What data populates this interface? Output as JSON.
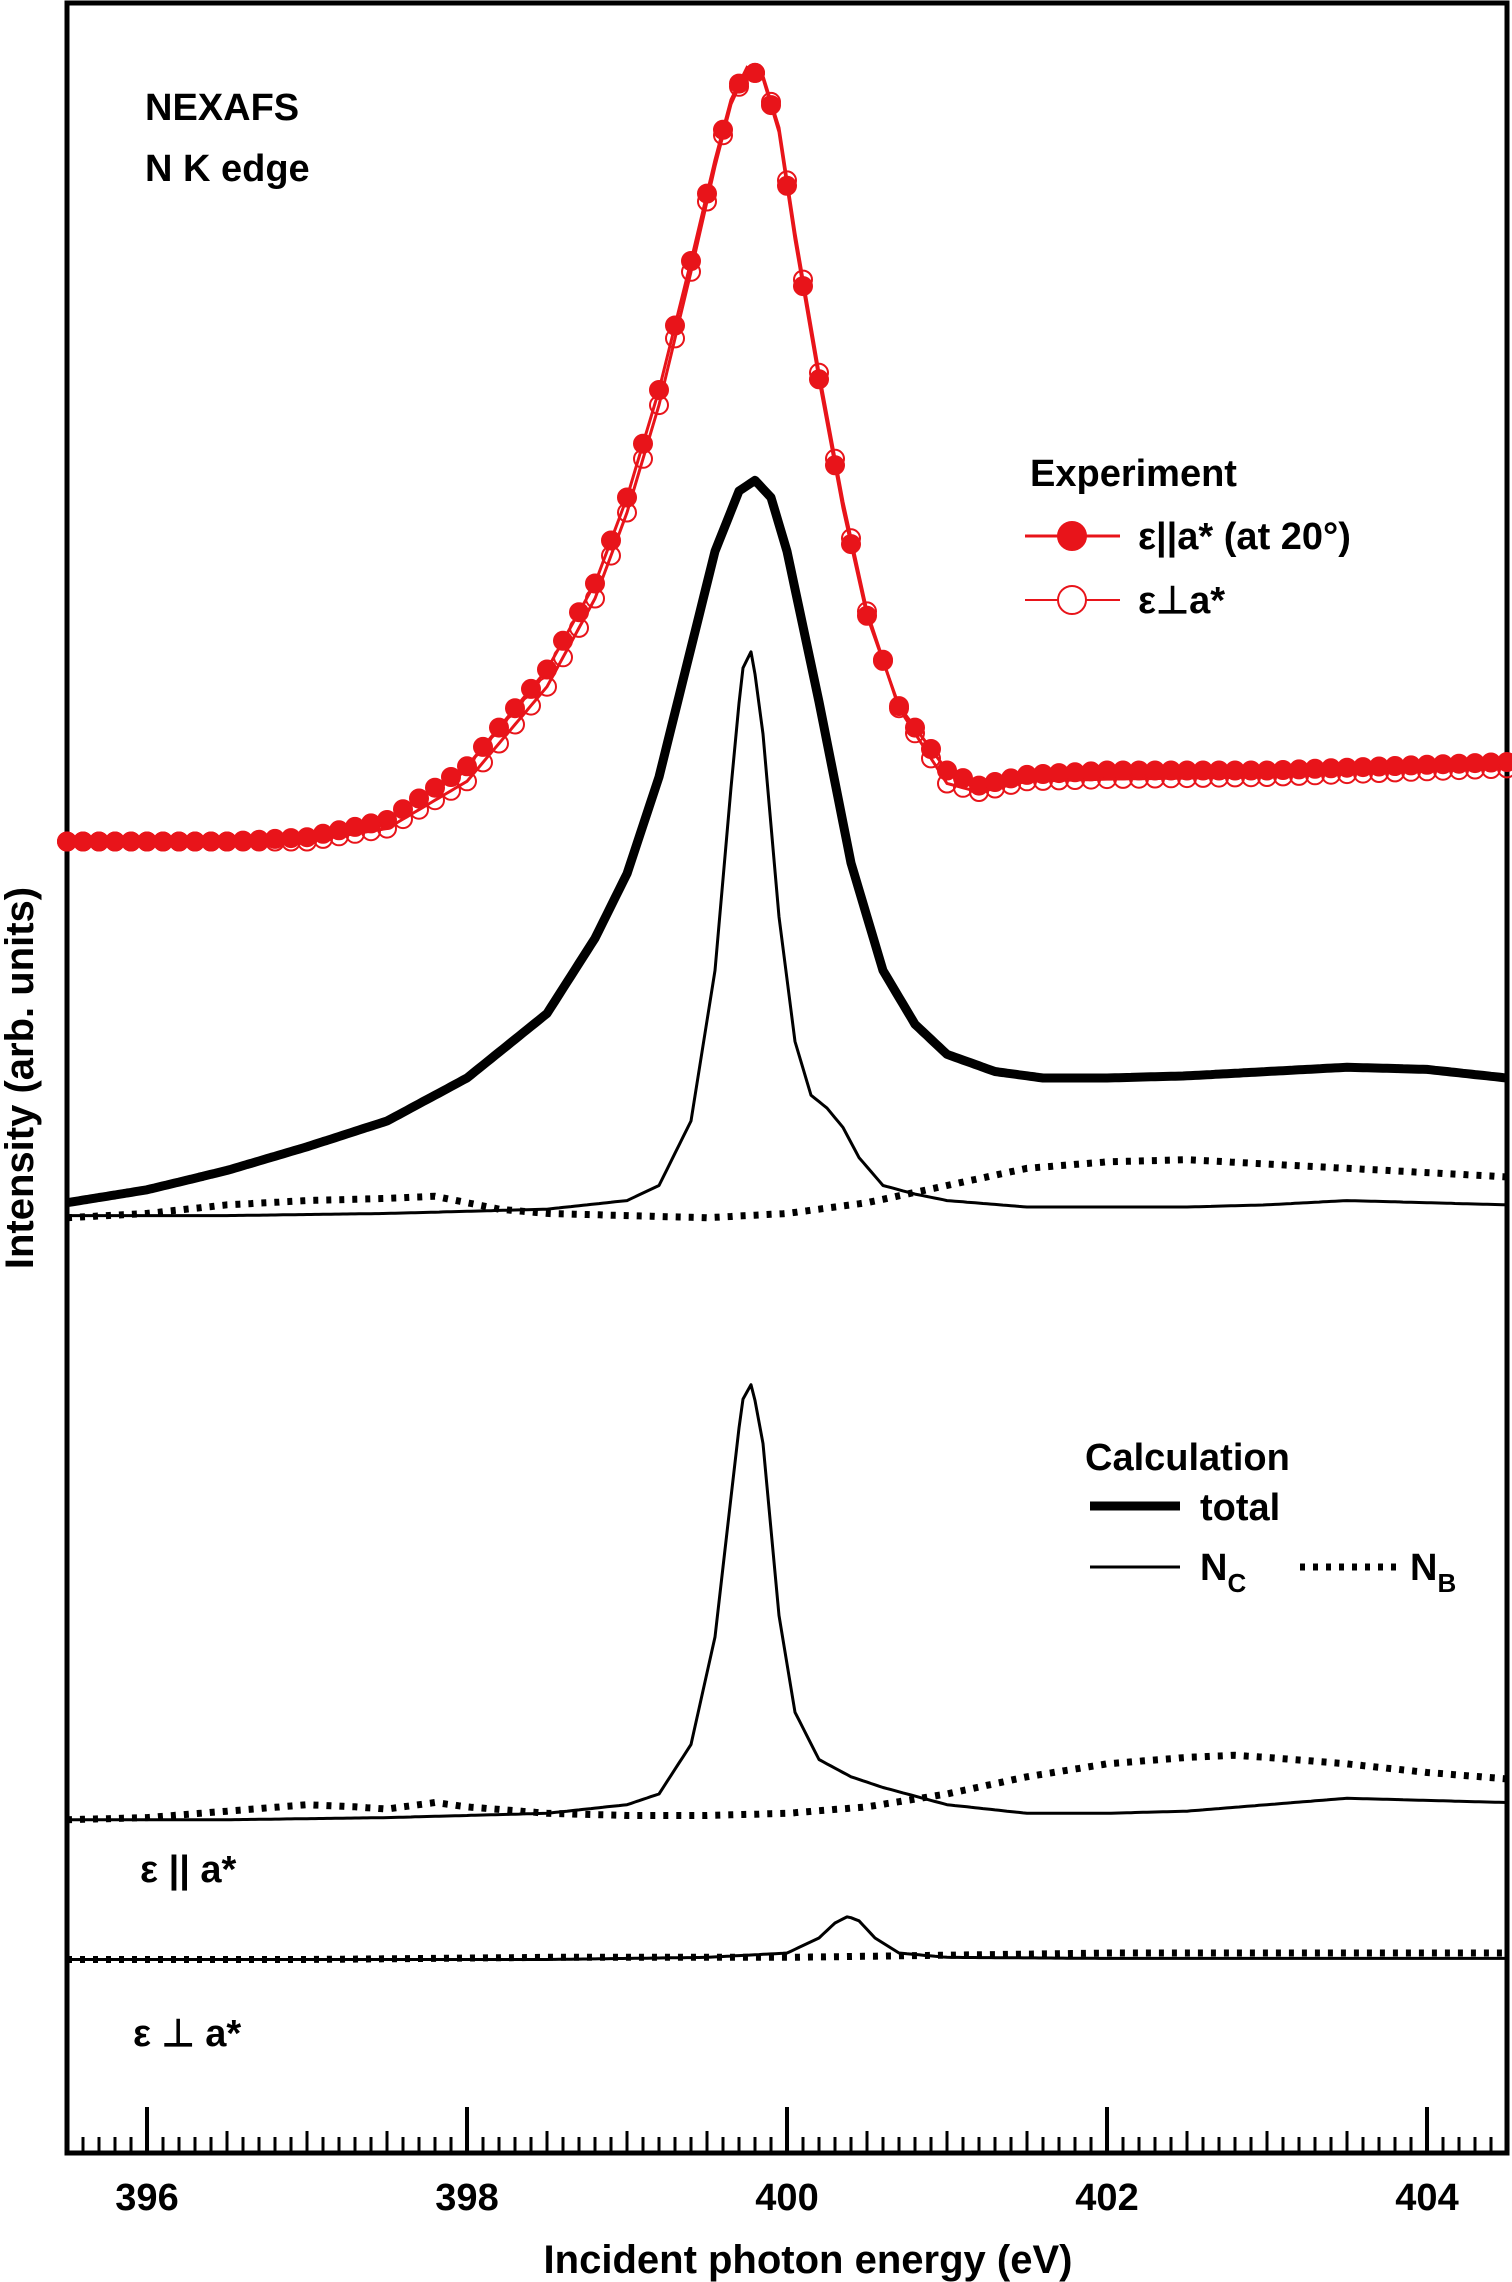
{
  "chart_data": {
    "type": "line",
    "xlabel": "Incident photon energy (eV)",
    "ylabel": "Intensity (arb. units)",
    "xlim": [
      395.5,
      404.5
    ],
    "ylim": [
      0,
      100
    ],
    "x_ticks": [
      396,
      398,
      400,
      402,
      404
    ],
    "x_tick_labels": [
      "396",
      "398",
      "400",
      "402",
      "404"
    ],
    "y_ticks_shown": false,
    "annotations": {
      "title_line1": "NEXAFS",
      "title_line2": "N K edge",
      "label_parallel": "ε || a*",
      "label_perp": "ε ⊥ a*"
    },
    "legend_experiment": {
      "title": "Experiment",
      "entries": [
        "ε||a* (at 20°)",
        "ε⊥a*"
      ]
    },
    "legend_calculation": {
      "title": "Calculation",
      "total_label": "total",
      "nc_label": "N",
      "nc_sub": "C",
      "nb_label": "N",
      "nb_sub": "B"
    },
    "series": [
      {
        "name": "Experiment ε||a* (at 20°)",
        "group": "experiment",
        "style": "filled-marker",
        "color": "#e8141a",
        "x": [
          395.5,
          396.0,
          396.5,
          397.0,
          397.5,
          398.0,
          398.5,
          398.8,
          399.0,
          399.2,
          399.4,
          399.55,
          399.65,
          399.75,
          399.85,
          399.95,
          400.05,
          400.2,
          400.35,
          400.5,
          400.7,
          401.0,
          401.2,
          401.5,
          402.0,
          403.0,
          404.5
        ],
        "y": [
          61.0,
          61.0,
          61.0,
          61.2,
          62.0,
          64.5,
          69.0,
          73.0,
          77.0,
          82.0,
          88.0,
          92.7,
          95.5,
          97.0,
          96.5,
          94.0,
          89.0,
          82.5,
          76.5,
          71.5,
          67.3,
          64.3,
          63.6,
          64.1,
          64.3,
          64.3,
          64.7
        ]
      },
      {
        "name": "Experiment ε⊥a*",
        "group": "experiment",
        "style": "open-marker",
        "color": "#e8141a",
        "x": [
          395.5,
          396.0,
          396.5,
          397.0,
          397.5,
          398.0,
          398.5,
          398.8,
          399.0,
          399.2,
          399.4,
          399.55,
          399.65,
          399.75,
          399.85,
          399.95,
          400.05,
          400.2,
          400.35,
          400.5,
          400.7,
          401.0,
          401.2,
          401.5,
          402.0,
          403.0,
          404.5
        ],
        "y": [
          61.0,
          61.0,
          61.0,
          61.0,
          61.6,
          63.8,
          68.2,
          72.3,
          76.3,
          81.3,
          87.5,
          92.4,
          95.3,
          96.9,
          96.6,
          94.2,
          89.3,
          82.8,
          76.8,
          71.7,
          67.2,
          63.7,
          63.3,
          63.8,
          63.9,
          64.0,
          64.4
        ]
      },
      {
        "name": "Calculation total (ε||a* at 20°)",
        "group": "calc-top",
        "style": "thick",
        "color": "#000000",
        "x": [
          395.5,
          396.0,
          396.5,
          397.0,
          397.5,
          398.0,
          398.5,
          398.8,
          399.0,
          399.2,
          399.4,
          399.55,
          399.7,
          399.8,
          399.9,
          400.0,
          400.2,
          400.4,
          400.6,
          400.8,
          401.0,
          401.3,
          401.6,
          402.0,
          402.5,
          403.0,
          403.5,
          404.0,
          404.5
        ],
        "y": [
          44.2,
          44.8,
          45.7,
          46.8,
          48.0,
          50.0,
          53.0,
          56.5,
          59.5,
          64.0,
          70.0,
          74.5,
          77.3,
          77.8,
          77.0,
          74.5,
          67.5,
          60.0,
          55.0,
          52.5,
          51.1,
          50.3,
          50.0,
          50.0,
          50.1,
          50.3,
          50.5,
          50.4,
          50.0
        ]
      },
      {
        "name": "Calculation N_C (ε||a* at 20°)",
        "group": "calc-top",
        "style": "thin",
        "color": "#000000",
        "x": [
          395.5,
          396.5,
          397.5,
          398.5,
          399.0,
          399.2,
          399.4,
          399.55,
          399.65,
          399.72,
          399.78,
          399.85,
          399.95,
          400.05,
          400.15,
          400.25,
          400.35,
          400.45,
          400.6,
          400.8,
          401.0,
          401.5,
          402.0,
          402.5,
          403.0,
          403.5,
          404.0,
          404.5
        ],
        "y": [
          43.6,
          43.6,
          43.7,
          43.9,
          44.3,
          45.0,
          48.0,
          55.0,
          63.5,
          69.0,
          69.9,
          66.0,
          57.5,
          51.7,
          49.2,
          48.6,
          47.7,
          46.3,
          45.0,
          44.6,
          44.3,
          44.0,
          44.0,
          44.0,
          44.1,
          44.3,
          44.2,
          44.1
        ]
      },
      {
        "name": "Calculation N_B (ε||a* at 20°)",
        "group": "calc-top",
        "style": "dotted",
        "color": "#000000",
        "x": [
          395.5,
          396.0,
          396.5,
          397.0,
          397.5,
          397.8,
          398.0,
          398.2,
          398.5,
          399.0,
          399.5,
          400.0,
          400.5,
          401.0,
          401.5,
          402.0,
          402.5,
          403.0,
          403.5,
          404.0,
          404.5
        ],
        "y": [
          43.5,
          43.7,
          44.1,
          44.3,
          44.4,
          44.5,
          44.2,
          43.9,
          43.7,
          43.6,
          43.5,
          43.7,
          44.2,
          45.0,
          45.8,
          46.1,
          46.2,
          46.0,
          45.8,
          45.6,
          45.4
        ]
      },
      {
        "name": "Calculation N_C (ε || a*)",
        "group": "calc-parallel",
        "style": "thin",
        "color": "#000000",
        "x": [
          395.5,
          396.5,
          397.5,
          398.5,
          399.0,
          399.2,
          399.4,
          399.55,
          399.65,
          399.72,
          399.78,
          399.85,
          399.95,
          400.05,
          400.2,
          400.4,
          400.6,
          400.8,
          401.0,
          401.5,
          402.0,
          402.5,
          403.0,
          403.5,
          404.0,
          404.5
        ],
        "y": [
          15.5,
          15.5,
          15.6,
          15.8,
          16.2,
          16.7,
          19.0,
          24.0,
          30.5,
          35.0,
          35.8,
          33.0,
          25.0,
          20.5,
          18.3,
          17.5,
          17.0,
          16.6,
          16.2,
          15.8,
          15.8,
          15.9,
          16.2,
          16.5,
          16.4,
          16.3
        ]
      },
      {
        "name": "Calculation N_B (ε || a*)",
        "group": "calc-parallel",
        "style": "dotted",
        "color": "#000000",
        "x": [
          395.5,
          396.0,
          396.5,
          397.0,
          397.3,
          397.5,
          397.8,
          398.0,
          398.5,
          399.0,
          399.5,
          400.0,
          400.5,
          401.0,
          401.5,
          402.0,
          402.5,
          402.8,
          403.0,
          403.5,
          404.0,
          404.5
        ],
        "y": [
          15.5,
          15.6,
          15.9,
          16.2,
          16.1,
          16.0,
          16.3,
          16.1,
          15.8,
          15.7,
          15.7,
          15.8,
          16.1,
          16.7,
          17.5,
          18.1,
          18.4,
          18.5,
          18.4,
          18.1,
          17.7,
          17.4
        ]
      },
      {
        "name": "Calculation N_C (ε ⊥ a*)",
        "group": "calc-perp",
        "style": "thin",
        "color": "#000000",
        "x": [
          395.5,
          397.0,
          398.5,
          399.5,
          400.0,
          400.2,
          400.3,
          400.38,
          400.45,
          400.55,
          400.7,
          401.0,
          402.0,
          403.0,
          404.0,
          404.5
        ],
        "y": [
          9.0,
          9.0,
          9.0,
          9.1,
          9.3,
          10.0,
          10.7,
          11.0,
          10.8,
          10.0,
          9.3,
          9.1,
          9.05,
          9.05,
          9.05,
          9.05
        ]
      },
      {
        "name": "Calculation N_B (ε ⊥ a*)",
        "group": "calc-perp",
        "style": "dotted",
        "color": "#000000",
        "x": [
          395.5,
          397.0,
          398.5,
          400.0,
          401.0,
          402.0,
          403.0,
          404.0,
          404.5
        ],
        "y": [
          9.0,
          9.0,
          9.1,
          9.1,
          9.2,
          9.3,
          9.3,
          9.3,
          9.3
        ]
      }
    ]
  }
}
